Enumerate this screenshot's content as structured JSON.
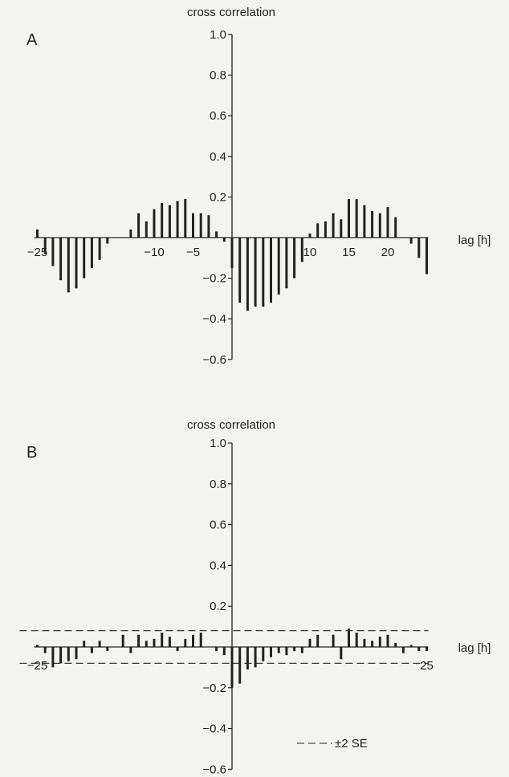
{
  "chart_data": [
    {
      "type": "bar",
      "panel_label": "A",
      "ylabel": "cross correlation",
      "xlabel": "lag [h]",
      "ylim": [
        -0.6,
        1.0
      ],
      "yticks": [
        -0.6,
        -0.4,
        -0.2,
        0.2,
        0.4,
        0.6,
        0.8,
        1.0
      ],
      "ytick_labels": [
        "−0.6",
        "−0.4",
        "−0.2",
        "0.2",
        "0.4",
        "0.6",
        "0.8",
        "1.0"
      ],
      "xlim": [
        -25,
        25
      ],
      "xticks": [
        -25,
        -10,
        -5,
        10,
        15,
        20
      ],
      "xtick_labels": [
        "−25",
        "−10",
        "−5",
        "10",
        "15",
        "20"
      ],
      "x": [
        -25,
        -24,
        -23,
        -22,
        -21,
        -20,
        -19,
        -18,
        -17,
        -16,
        -15,
        -14,
        -13,
        -12,
        -11,
        -10,
        -9,
        -8,
        -7,
        -6,
        -5,
        -4,
        -3,
        -2,
        -1,
        0,
        1,
        2,
        3,
        4,
        5,
        6,
        7,
        8,
        9,
        10,
        11,
        12,
        13,
        14,
        15,
        16,
        17,
        18,
        19,
        20,
        21,
        22,
        23,
        24,
        25
      ],
      "values": [
        0.04,
        -0.08,
        -0.14,
        -0.21,
        -0.27,
        -0.25,
        -0.2,
        -0.15,
        -0.11,
        -0.03,
        0.0,
        0.0,
        0.04,
        0.12,
        0.08,
        0.14,
        0.17,
        0.16,
        0.18,
        0.19,
        0.12,
        0.12,
        0.11,
        0.03,
        -0.02,
        -0.15,
        -0.32,
        -0.36,
        -0.34,
        -0.34,
        -0.32,
        -0.28,
        -0.25,
        -0.2,
        -0.12,
        0.02,
        0.07,
        0.08,
        0.12,
        0.09,
        0.19,
        0.19,
        0.16,
        0.13,
        0.12,
        0.15,
        0.1,
        0.0,
        -0.03,
        -0.1,
        -0.18
      ]
    },
    {
      "type": "bar",
      "panel_label": "B",
      "ylabel": "cross correlation",
      "xlabel": "lag [h]",
      "ylim": [
        -0.6,
        1.0
      ],
      "yticks": [
        -0.6,
        -0.4,
        -0.2,
        0.2,
        0.4,
        0.6,
        0.8,
        1.0
      ],
      "ytick_labels": [
        "−0.6",
        "−0.4",
        "−0.2",
        "0.2",
        "0.4",
        "0.6",
        "0.8",
        "1.0"
      ],
      "xlim": [
        -25,
        25
      ],
      "xticks": [
        -25,
        25
      ],
      "xtick_labels": [
        "−25",
        "25"
      ],
      "x": [
        -25,
        -24,
        -23,
        -22,
        -21,
        -20,
        -19,
        -18,
        -17,
        -16,
        -15,
        -14,
        -13,
        -12,
        -11,
        -10,
        -9,
        -8,
        -7,
        -6,
        -5,
        -4,
        -3,
        -2,
        -1,
        0,
        1,
        2,
        3,
        4,
        5,
        6,
        7,
        8,
        9,
        10,
        11,
        12,
        13,
        14,
        15,
        16,
        17,
        18,
        19,
        20,
        21,
        22,
        23,
        24,
        25
      ],
      "values": [
        0.01,
        -0.03,
        -0.1,
        -0.08,
        -0.07,
        -0.06,
        0.03,
        -0.03,
        0.03,
        -0.02,
        0.0,
        0.06,
        -0.03,
        0.06,
        0.03,
        0.04,
        0.07,
        0.05,
        -0.02,
        0.04,
        0.06,
        0.07,
        0.0,
        -0.02,
        -0.04,
        -0.2,
        -0.18,
        -0.11,
        -0.1,
        -0.07,
        -0.05,
        -0.03,
        -0.04,
        -0.02,
        -0.03,
        0.04,
        0.06,
        0.0,
        0.06,
        -0.06,
        0.09,
        0.07,
        0.04,
        0.03,
        0.05,
        0.06,
        0.02,
        -0.03,
        0.01,
        -0.02,
        -0.02
      ],
      "reference_lines": [
        0.08,
        -0.08
      ],
      "legend_label": "±2 SE",
      "legend_position": "bottom-right"
    }
  ]
}
